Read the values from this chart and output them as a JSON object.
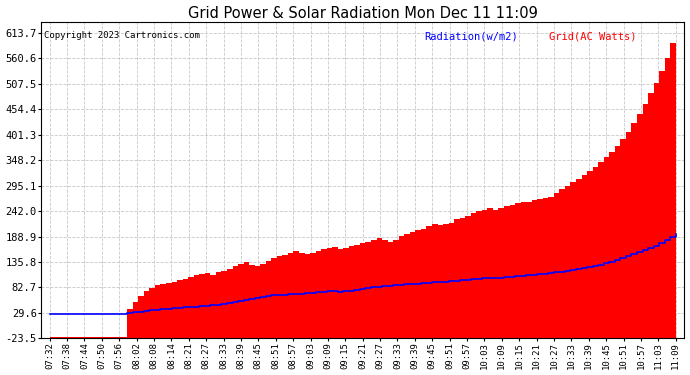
{
  "title": "Grid Power & Solar Radiation Mon Dec 11 11:09",
  "copyright": "Copyright 2023 Cartronics.com",
  "legend_radiation": "Radiation(w/m2)",
  "legend_grid": "Grid(AC Watts)",
  "ylabel_ticks": [
    -23.5,
    29.6,
    82.7,
    135.8,
    188.9,
    242.0,
    295.1,
    348.2,
    401.3,
    454.4,
    507.5,
    560.6,
    613.7
  ],
  "ylim": [
    -23.5,
    637.0
  ],
  "background_color": "#ffffff",
  "grid_color": "#c8c8c8",
  "red_fill_color": "#ff0000",
  "blue_line_color": "#0000ff",
  "x_labels": [
    "07:32",
    "07:38",
    "07:44",
    "07:50",
    "07:56",
    "08:02",
    "08:08",
    "08:14",
    "08:21",
    "08:27",
    "08:33",
    "08:39",
    "08:45",
    "08:51",
    "08:57",
    "09:03",
    "09:09",
    "09:15",
    "09:21",
    "09:27",
    "09:33",
    "09:39",
    "09:45",
    "09:51",
    "09:57",
    "10:03",
    "10:09",
    "10:15",
    "10:21",
    "10:27",
    "10:33",
    "10:39",
    "10:45",
    "10:51",
    "10:57",
    "11:03",
    "11:09"
  ],
  "grid_values": [
    -20,
    -20,
    -20,
    -20,
    -20,
    -20,
    -20,
    -20,
    -20,
    -20,
    -20,
    -20,
    -20,
    -20,
    38,
    52,
    65,
    75,
    82,
    88,
    90,
    92,
    95,
    98,
    100,
    105,
    108,
    110,
    112,
    108,
    115,
    118,
    122,
    128,
    132,
    135,
    130,
    128,
    132,
    138,
    145,
    148,
    150,
    155,
    158,
    155,
    152,
    155,
    158,
    162,
    165,
    168,
    162,
    165,
    170,
    172,
    175,
    178,
    182,
    185,
    182,
    178,
    182,
    190,
    195,
    198,
    202,
    205,
    210,
    215,
    212,
    215,
    218,
    225,
    228,
    232,
    238,
    242,
    245,
    248,
    245,
    248,
    252,
    255,
    258,
    260,
    262,
    265,
    268,
    270,
    272,
    280,
    288,
    295,
    302,
    310,
    318,
    325,
    335,
    345,
    355,
    365,
    378,
    392,
    408,
    425,
    445,
    465,
    488,
    510,
    535,
    562,
    592,
    620
  ],
  "radiation_values": [
    28,
    28,
    28,
    28,
    28,
    28,
    28,
    28,
    28,
    28,
    28,
    28,
    28,
    28,
    30,
    31,
    32,
    33,
    35,
    36,
    37,
    38,
    39,
    40,
    41,
    42,
    43,
    44,
    45,
    46,
    47,
    48,
    50,
    52,
    54,
    56,
    58,
    60,
    62,
    64,
    66,
    68,
    68,
    69,
    70,
    70,
    71,
    72,
    73,
    74,
    75,
    76,
    74,
    75,
    76,
    78,
    80,
    82,
    83,
    84,
    85,
    86,
    87,
    88,
    89,
    90,
    91,
    92,
    93,
    94,
    94,
    95,
    96,
    97,
    98,
    99,
    100,
    101,
    102,
    103,
    102,
    103,
    104,
    105,
    106,
    107,
    108,
    109,
    110,
    111,
    112,
    114,
    116,
    118,
    120,
    122,
    124,
    126,
    128,
    130,
    133,
    136,
    140,
    144,
    148,
    152,
    156,
    160,
    165,
    170,
    176,
    182,
    188,
    195
  ]
}
